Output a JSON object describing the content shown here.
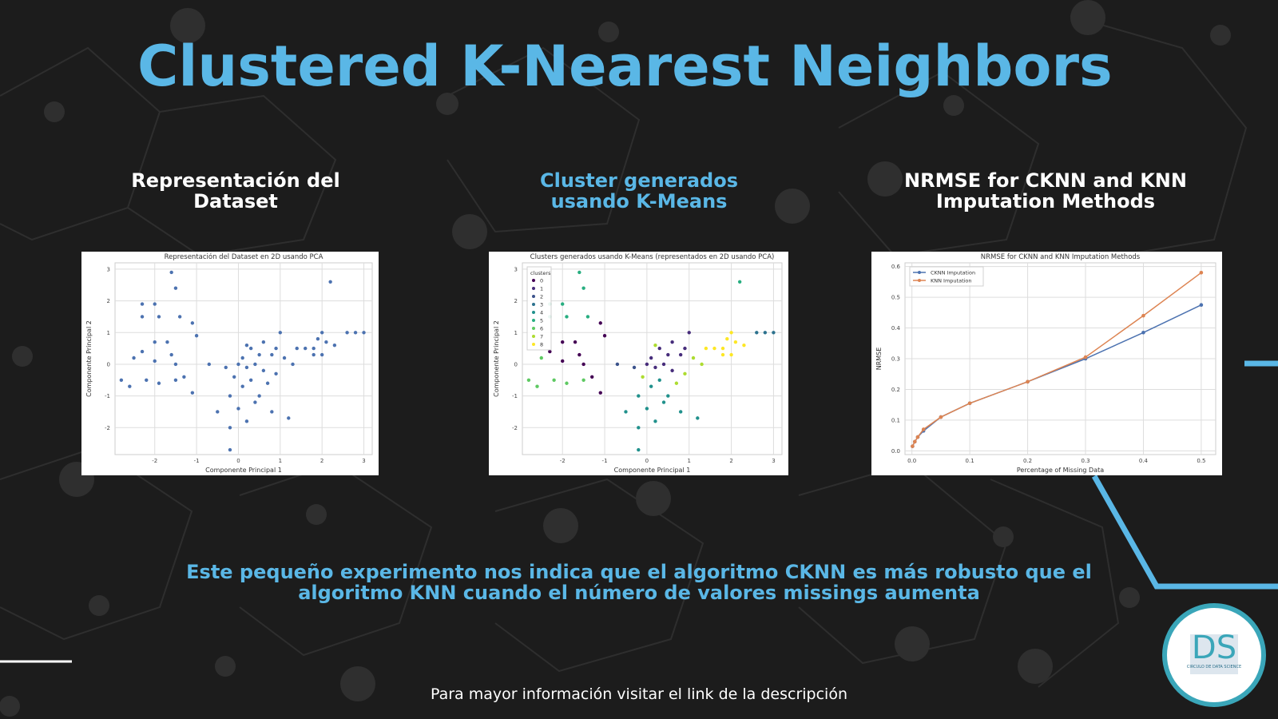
{
  "title": "Clustered K-Nearest Neighbors",
  "sections": [
    {
      "lines": [
        "Representación del",
        "Dataset"
      ]
    },
    {
      "lines": [
        "Cluster generados",
        "usando K-Means"
      ]
    },
    {
      "lines": [
        "NRMSE for CKNN and KNN",
        "Imputation Methods"
      ]
    }
  ],
  "conclusion": [
    "Este pequeño experimento nos indica que el algoritmo CKNN es más robusto que el",
    "algoritmo KNN cuando el número de valores missings aumenta"
  ],
  "footer": "Para mayor información visitar el link de la descripción",
  "logo": {
    "letters": "DS",
    "caption": "CIRCULO DE DATA SCIENCE"
  },
  "chart_data": [
    {
      "type": "scatter",
      "title": "Representación del Dataset en 2D usando PCA",
      "x_label": "Componente Principal 1",
      "y_label": "Componente Principal 2",
      "color": "#4c72b0",
      "x": [
        -2.3,
        -2.0,
        -1.9,
        -2.3,
        -1.5,
        -1.6,
        -1.4,
        -2.3,
        -2.0,
        -1.7,
        -1.6,
        -2.5,
        -2.2,
        -2.6,
        -2.8,
        -1.9,
        -1.5,
        -1.3,
        -1.5,
        -1.1,
        -1.0,
        -1.1,
        -0.7,
        -2.0,
        0.0,
        0.2,
        0.4,
        0.5,
        0.6,
        0.8,
        1.0,
        0.9,
        0.3,
        0.1,
        -0.2,
        0.0,
        0.2,
        -0.2,
        -0.2,
        -0.5,
        0.5,
        0.8,
        1.2,
        1.1,
        0.6,
        0.3,
        -0.3,
        0.1,
        0.7,
        1.3,
        0.4,
        -0.1,
        0.9,
        0.2,
        1.8,
        1.9,
        2.0,
        2.1,
        2.3,
        2.2,
        2.6,
        2.8,
        3.0,
        1.8,
        2.0,
        1.6,
        1.4
      ],
      "values": [
        1.9,
        1.9,
        1.5,
        1.5,
        2.4,
        2.9,
        1.5,
        0.4,
        0.7,
        0.7,
        0.3,
        0.2,
        -0.5,
        -0.7,
        -0.5,
        -0.6,
        -0.5,
        -0.4,
        0.0,
        1.3,
        0.9,
        -0.9,
        0.0,
        0.1,
        0.0,
        -0.1,
        0.0,
        0.3,
        -0.2,
        0.3,
        1.0,
        0.5,
        -0.5,
        -0.7,
        -1.0,
        -1.4,
        -1.8,
        -2.0,
        -2.7,
        -1.5,
        -1.0,
        -1.5,
        -1.7,
        0.2,
        0.7,
        0.5,
        -0.1,
        0.2,
        -0.6,
        0.0,
        -1.2,
        -0.4,
        -0.3,
        0.6,
        0.5,
        0.8,
        1.0,
        0.7,
        0.6,
        2.6,
        1.0,
        1.0,
        1.0,
        0.3,
        0.3,
        0.5,
        0.5
      ],
      "xlim": [
        -2.95,
        3.2
      ],
      "ylim": [
        -2.85,
        3.2
      ],
      "xticks": [
        -2,
        -1,
        0,
        1,
        2,
        3
      ],
      "yticks": [
        -2,
        -1,
        0,
        1,
        2,
        3
      ],
      "grid": true
    },
    {
      "type": "scatter",
      "title": "Clusters generados usando K-Means (representados en 2D usando PCA)",
      "x_label": "Componente Principal 1",
      "y_label": "Componente Principal 2",
      "legend_title": "clusters",
      "legend": "upper left",
      "series": [
        {
          "name": "0",
          "color": "#440154",
          "x": [
            -2.3,
            -2.0,
            -1.7,
            -1.6,
            -1.5,
            -1.1,
            -1.0,
            -2.0,
            -1.3,
            -1.1
          ],
          "values": [
            0.4,
            0.7,
            0.7,
            0.3,
            0.0,
            1.3,
            0.9,
            0.1,
            -0.4,
            -0.9
          ]
        },
        {
          "name": "1",
          "color": "#472d7b",
          "x": [
            0.0,
            0.2,
            0.4,
            0.5,
            0.6,
            0.8,
            0.6,
            0.3,
            0.1,
            1.0,
            0.9
          ],
          "values": [
            0.0,
            -0.1,
            0.0,
            0.3,
            -0.2,
            0.3,
            0.7,
            0.5,
            0.2,
            1.0,
            0.5
          ]
        },
        {
          "name": "2",
          "color": "#3b528b",
          "x": [
            -0.3,
            -0.7
          ],
          "values": [
            -0.1,
            0.0
          ]
        },
        {
          "name": "3",
          "color": "#2c728e",
          "x": [
            2.6,
            2.8,
            3.0
          ],
          "values": [
            1.0,
            1.0,
            1.0
          ]
        },
        {
          "name": "4",
          "color": "#21918c",
          "x": [
            0.3,
            0.1,
            -0.2,
            0.0,
            0.2,
            -0.2,
            -0.2,
            -0.5,
            0.5,
            0.8,
            1.2,
            0.4
          ],
          "values": [
            -0.5,
            -0.7,
            -1.0,
            -1.4,
            -1.8,
            -2.0,
            -2.7,
            -1.5,
            -1.0,
            -1.5,
            -1.7,
            -1.2
          ]
        },
        {
          "name": "5",
          "color": "#28ae80",
          "x": [
            -2.3,
            -2.0,
            -1.9,
            -2.3,
            -1.5,
            -1.6,
            -1.4,
            2.2
          ],
          "values": [
            1.9,
            1.9,
            1.5,
            1.5,
            2.4,
            2.9,
            1.5,
            2.6
          ]
        },
        {
          "name": "6",
          "color": "#5ec962",
          "x": [
            -2.5,
            -2.2,
            -2.6,
            -2.8,
            -1.9,
            -1.5
          ],
          "values": [
            0.2,
            -0.5,
            -0.7,
            -0.5,
            -0.6,
            -0.5
          ]
        },
        {
          "name": "7",
          "color": "#addc30",
          "x": [
            1.1,
            0.7,
            1.3,
            -0.1,
            0.9,
            0.2
          ],
          "values": [
            0.2,
            -0.6,
            0.0,
            -0.4,
            -0.3,
            0.6
          ]
        },
        {
          "name": "8",
          "color": "#fde725",
          "x": [
            1.8,
            1.9,
            2.0,
            2.1,
            2.3,
            1.8,
            2.0,
            1.6,
            1.4
          ],
          "values": [
            0.5,
            0.8,
            1.0,
            0.7,
            0.6,
            0.3,
            0.3,
            0.5,
            0.5
          ]
        }
      ],
      "xlim": [
        -2.95,
        3.2
      ],
      "ylim": [
        -2.85,
        3.2
      ],
      "xticks": [
        -2,
        -1,
        0,
        1,
        2,
        3
      ],
      "yticks": [
        -2,
        -1,
        0,
        1,
        2,
        3
      ],
      "grid": true
    },
    {
      "type": "line",
      "title": "NRMSE for CKNN and KNN Imputation Methods",
      "x_label": "Percentage of Missing Data",
      "y_label": "NRMSE",
      "legend": "upper left",
      "x": [
        0.001,
        0.005,
        0.01,
        0.02,
        0.05,
        0.1,
        0.2,
        0.3,
        0.4,
        0.5
      ],
      "series": [
        {
          "name": "CKNN Imputation",
          "color": "#4c72b0",
          "values": [
            0.015,
            0.03,
            0.045,
            0.065,
            0.11,
            0.155,
            0.225,
            0.3,
            0.385,
            0.475
          ]
        },
        {
          "name": "KNN Imputation",
          "color": "#dd8452",
          "values": [
            0.015,
            0.03,
            0.045,
            0.07,
            0.11,
            0.155,
            0.225,
            0.305,
            0.44,
            0.58
          ]
        }
      ],
      "xlim": [
        -0.012,
        0.525
      ],
      "ylim": [
        -0.012,
        0.612
      ],
      "xticks": [
        {
          "value": 0,
          "label": "0.0"
        },
        0.1,
        0.2,
        0.3,
        0.4,
        0.5
      ],
      "yticks": [
        {
          "value": 0,
          "label": "0.0"
        },
        0.1,
        0.2,
        0.3,
        0.4,
        0.5,
        0.6
      ],
      "grid": true
    }
  ]
}
